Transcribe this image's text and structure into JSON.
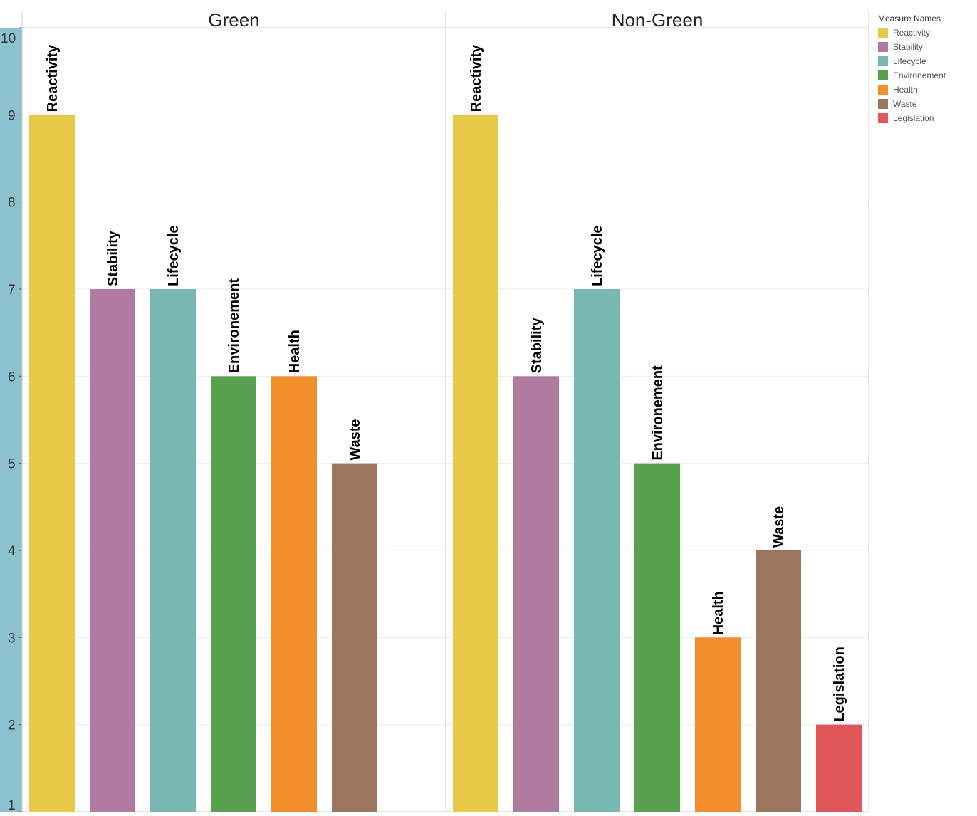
{
  "chart_data": {
    "type": "bar",
    "ylim": [
      1,
      10
    ],
    "yticks": [
      "1",
      "2",
      "3",
      "4",
      "5",
      "6",
      "7",
      "8",
      "9",
      "10"
    ],
    "panels": [
      {
        "title": "Green",
        "categories": [
          "Reactivity",
          "Stability",
          "Lifecycle",
          "Environement",
          "Health",
          "Waste"
        ],
        "values": [
          9,
          7,
          7,
          6,
          6,
          5
        ]
      },
      {
        "title": "Non-Green",
        "categories": [
          "Reactivity",
          "Stability",
          "Lifecycle",
          "Environement",
          "Health",
          "Waste",
          "Legislation"
        ],
        "values": [
          9,
          6,
          7,
          5,
          3,
          4,
          2
        ]
      }
    ],
    "legend": {
      "title": "Measure Names",
      "placement": "top-right",
      "items": [
        "Reactivity",
        "Stability",
        "Lifecycle",
        "Environement",
        "Health",
        "Waste",
        "Legislation"
      ]
    },
    "grid": true
  },
  "colors": {
    "Reactivity": "#e9c948",
    "Stability": "#b07aa1",
    "Lifecycle": "#79b7b2",
    "Environement": "#59a14f",
    "Health": "#f28e2c",
    "Waste": "#9c755f",
    "Legislation": "#e15759",
    "axis_band": "#8cc2d0"
  }
}
